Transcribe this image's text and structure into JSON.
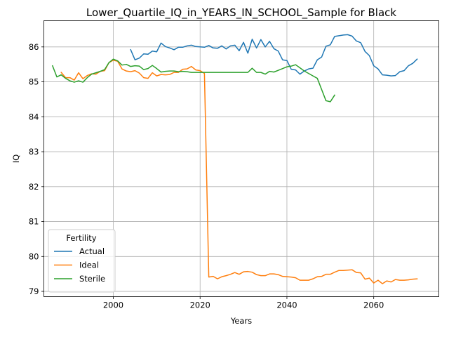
{
  "chart_data": {
    "type": "line",
    "title": "Lower_Quartile_IQ_in_YEARS_IN_SCHOOL_Sample for Black",
    "xlabel": "Years",
    "ylabel": "IQ",
    "xlim": [
      1984,
      2075
    ],
    "ylim": [
      78.85,
      86.75
    ],
    "xticks": [
      2000,
      2020,
      2040,
      2060
    ],
    "yticks": [
      79,
      80,
      81,
      82,
      83,
      84,
      85,
      86
    ],
    "grid": true,
    "legend": {
      "title": "Fertility",
      "position": "lower-left"
    },
    "series": [
      {
        "name": "Actual",
        "color": "#1f77b4",
        "points": [
          [
            2004,
            85.92
          ],
          [
            2005,
            85.63
          ],
          [
            2006,
            85.68
          ],
          [
            2007,
            85.8
          ],
          [
            2008,
            85.79
          ],
          [
            2009,
            85.88
          ],
          [
            2010,
            85.86
          ],
          [
            2011,
            86.11
          ],
          [
            2012,
            86.01
          ],
          [
            2013,
            85.97
          ],
          [
            2014,
            85.92
          ],
          [
            2015,
            85.99
          ],
          [
            2016,
            85.99
          ],
          [
            2017,
            86.03
          ],
          [
            2018,
            86.05
          ],
          [
            2019,
            86.01
          ],
          [
            2020,
            86.0
          ],
          [
            2021,
            85.99
          ],
          [
            2022,
            86.04
          ],
          [
            2023,
            85.97
          ],
          [
            2024,
            85.96
          ],
          [
            2025,
            86.03
          ],
          [
            2026,
            85.94
          ],
          [
            2027,
            86.03
          ],
          [
            2028,
            86.05
          ],
          [
            2029,
            85.89
          ],
          [
            2030,
            86.13
          ],
          [
            2031,
            85.82
          ],
          [
            2032,
            86.22
          ],
          [
            2033,
            85.97
          ],
          [
            2034,
            86.21
          ],
          [
            2035,
            86.0
          ],
          [
            2036,
            86.16
          ],
          [
            2037,
            85.95
          ],
          [
            2038,
            85.88
          ],
          [
            2039,
            85.63
          ],
          [
            2040,
            85.61
          ],
          [
            2041,
            85.36
          ],
          [
            2042,
            85.34
          ],
          [
            2043,
            85.22
          ],
          [
            2044,
            85.31
          ],
          [
            2045,
            85.37
          ],
          [
            2046,
            85.39
          ],
          [
            2047,
            85.63
          ],
          [
            2048,
            85.71
          ],
          [
            2049,
            86.02
          ],
          [
            2050,
            86.06
          ],
          [
            2051,
            86.3
          ],
          [
            2052,
            86.32
          ],
          [
            2053,
            86.34
          ],
          [
            2054,
            86.35
          ],
          [
            2055,
            86.31
          ],
          [
            2056,
            86.17
          ],
          [
            2057,
            86.12
          ],
          [
            2058,
            85.87
          ],
          [
            2059,
            85.75
          ],
          [
            2060,
            85.46
          ],
          [
            2061,
            85.37
          ],
          [
            2062,
            85.2
          ],
          [
            2063,
            85.19
          ],
          [
            2064,
            85.17
          ],
          [
            2065,
            85.18
          ],
          [
            2066,
            85.29
          ],
          [
            2067,
            85.32
          ],
          [
            2068,
            85.46
          ],
          [
            2069,
            85.53
          ],
          [
            2070,
            85.65
          ]
        ]
      },
      {
        "name": "Ideal",
        "color": "#ff7f0e",
        "points": [
          [
            1988,
            85.27
          ],
          [
            1989,
            85.12
          ],
          [
            1990,
            85.12
          ],
          [
            1991,
            85.05
          ],
          [
            1992,
            85.26
          ],
          [
            1993,
            85.09
          ],
          [
            1994,
            85.18
          ],
          [
            1995,
            85.23
          ],
          [
            1996,
            85.22
          ],
          [
            1997,
            85.3
          ],
          [
            1998,
            85.32
          ],
          [
            1999,
            85.55
          ],
          [
            2000,
            85.62
          ],
          [
            2001,
            85.59
          ],
          [
            2002,
            85.37
          ],
          [
            2003,
            85.31
          ],
          [
            2004,
            85.29
          ],
          [
            2005,
            85.32
          ],
          [
            2006,
            85.25
          ],
          [
            2007,
            85.12
          ],
          [
            2008,
            85.1
          ],
          [
            2009,
            85.26
          ],
          [
            2010,
            85.17
          ],
          [
            2011,
            85.21
          ],
          [
            2012,
            85.2
          ],
          [
            2013,
            85.21
          ],
          [
            2014,
            85.27
          ],
          [
            2015,
            85.27
          ],
          [
            2016,
            85.36
          ],
          [
            2017,
            85.37
          ],
          [
            2018,
            85.44
          ],
          [
            2019,
            85.34
          ],
          [
            2020,
            85.32
          ],
          [
            2021,
            85.24
          ],
          [
            2022,
            79.41
          ],
          [
            2023,
            79.43
          ],
          [
            2024,
            79.36
          ],
          [
            2025,
            79.42
          ],
          [
            2026,
            79.45
          ],
          [
            2027,
            79.49
          ],
          [
            2028,
            79.54
          ],
          [
            2029,
            79.49
          ],
          [
            2030,
            79.56
          ],
          [
            2031,
            79.57
          ],
          [
            2032,
            79.55
          ],
          [
            2033,
            79.48
          ],
          [
            2034,
            79.45
          ],
          [
            2035,
            79.45
          ],
          [
            2036,
            79.5
          ],
          [
            2037,
            79.5
          ],
          [
            2038,
            79.48
          ],
          [
            2039,
            79.43
          ],
          [
            2040,
            79.42
          ],
          [
            2041,
            79.41
          ],
          [
            2042,
            79.39
          ],
          [
            2043,
            79.32
          ],
          [
            2044,
            79.32
          ],
          [
            2045,
            79.32
          ],
          [
            2046,
            79.36
          ],
          [
            2047,
            79.42
          ],
          [
            2048,
            79.43
          ],
          [
            2049,
            79.49
          ],
          [
            2050,
            79.49
          ],
          [
            2051,
            79.55
          ],
          [
            2052,
            79.6
          ],
          [
            2053,
            79.6
          ],
          [
            2054,
            79.61
          ],
          [
            2055,
            79.62
          ],
          [
            2056,
            79.54
          ],
          [
            2057,
            79.53
          ],
          [
            2058,
            79.35
          ],
          [
            2059,
            79.38
          ],
          [
            2060,
            79.24
          ],
          [
            2061,
            79.32
          ],
          [
            2062,
            79.22
          ],
          [
            2063,
            79.3
          ],
          [
            2064,
            79.27
          ],
          [
            2065,
            79.34
          ],
          [
            2066,
            79.32
          ],
          [
            2067,
            79.32
          ],
          [
            2068,
            79.33
          ],
          [
            2069,
            79.35
          ],
          [
            2070,
            79.36
          ]
        ]
      },
      {
        "name": "Sterile",
        "color": "#2ca02c",
        "points": [
          [
            1986,
            85.46
          ],
          [
            1987,
            85.14
          ],
          [
            1988,
            85.2
          ],
          [
            1989,
            85.1
          ],
          [
            1990,
            85.03
          ],
          [
            1991,
            84.99
          ],
          [
            1992,
            85.03
          ],
          [
            1993,
            84.99
          ],
          [
            1994,
            85.12
          ],
          [
            1995,
            85.22
          ],
          [
            1996,
            85.26
          ],
          [
            1997,
            85.3
          ],
          [
            1998,
            85.35
          ],
          [
            1999,
            85.55
          ],
          [
            2000,
            85.65
          ],
          [
            2001,
            85.6
          ],
          [
            2002,
            85.48
          ],
          [
            2003,
            85.5
          ],
          [
            2004,
            85.44
          ],
          [
            2005,
            85.46
          ],
          [
            2006,
            85.45
          ],
          [
            2007,
            85.35
          ],
          [
            2008,
            85.38
          ],
          [
            2009,
            85.47
          ],
          [
            2010,
            85.38
          ],
          [
            2011,
            85.28
          ],
          [
            2012,
            85.3
          ],
          [
            2013,
            85.31
          ],
          [
            2014,
            85.31
          ],
          [
            2015,
            85.29
          ],
          [
            2016,
            85.3
          ],
          [
            2017,
            85.29
          ],
          [
            2018,
            85.27
          ],
          [
            2019,
            85.27
          ],
          [
            2020,
            85.27
          ],
          [
            2021,
            85.27
          ],
          [
            2022,
            85.27
          ],
          [
            2023,
            85.27
          ],
          [
            2024,
            85.27
          ],
          [
            2025,
            85.27
          ],
          [
            2026,
            85.27
          ],
          [
            2027,
            85.27
          ],
          [
            2028,
            85.27
          ],
          [
            2029,
            85.27
          ],
          [
            2030,
            85.27
          ],
          [
            2031,
            85.27
          ],
          [
            2032,
            85.39
          ],
          [
            2033,
            85.27
          ],
          [
            2034,
            85.27
          ],
          [
            2035,
            85.22
          ],
          [
            2036,
            85.3
          ],
          [
            2037,
            85.28
          ],
          [
            2038,
            85.33
          ],
          [
            2039,
            85.38
          ],
          [
            2040,
            85.43
          ],
          [
            2041,
            85.45
          ],
          [
            2042,
            85.49
          ],
          [
            2043,
            85.4
          ],
          [
            2044,
            85.31
          ],
          [
            2045,
            85.24
          ],
          [
            2046,
            85.17
          ],
          [
            2047,
            85.1
          ],
          [
            2048,
            84.78
          ],
          [
            2049,
            84.46
          ],
          [
            2050,
            84.43
          ],
          [
            2051,
            84.62
          ]
        ]
      }
    ]
  }
}
